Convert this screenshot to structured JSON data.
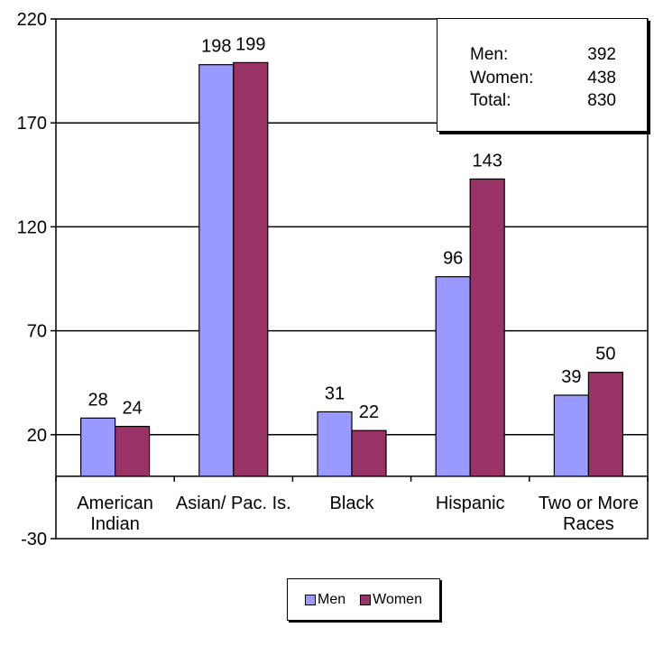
{
  "chart_data": {
    "type": "bar",
    "categories": [
      "American Indian",
      "Asian/ Pac. Is.",
      "Black",
      "Hispanic",
      "Two or More Races"
    ],
    "category_lines": [
      [
        "American",
        "Indian"
      ],
      [
        "Asian/ Pac. Is."
      ],
      [
        "Black"
      ],
      [
        "Hispanic"
      ],
      [
        "Two or More",
        "Races"
      ]
    ],
    "series": [
      {
        "name": "Men",
        "values": [
          28,
          198,
          31,
          96,
          39
        ],
        "color": "#9999ff"
      },
      {
        "name": "Women",
        "values": [
          24,
          199,
          22,
          143,
          50
        ],
        "color": "#993366"
      }
    ],
    "ylim": [
      -30,
      220
    ],
    "yticks": [
      220,
      170,
      120,
      70,
      20,
      -30
    ],
    "grid": true,
    "legend_placement": "bottom"
  },
  "totals": [
    {
      "label": "Men:",
      "value": "392"
    },
    {
      "label": "Women:",
      "value": "438"
    },
    {
      "label": "Total:",
      "value": "830"
    }
  ],
  "legend": {
    "men": "Men",
    "women": "Women"
  }
}
